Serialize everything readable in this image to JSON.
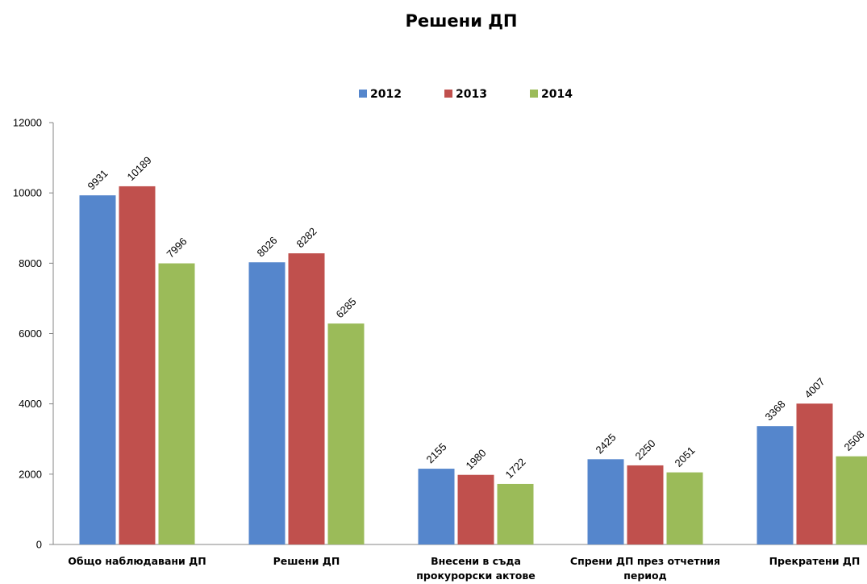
{
  "chart_data": {
    "type": "bar",
    "title": "Решени ДП",
    "categories": [
      [
        "Общо наблюдавани ДП"
      ],
      [
        "Решени ДП"
      ],
      [
        "Внесени в съда",
        "прокурорски актове"
      ],
      [
        "Спрени ДП през отчетния",
        "период"
      ],
      [
        "Прекратени ДП"
      ]
    ],
    "series": [
      {
        "name": "2012",
        "color": "#5586cc",
        "values": [
          9931,
          8026,
          2155,
          2425,
          3368
        ]
      },
      {
        "name": "2013",
        "color": "#c0504d",
        "values": [
          10189,
          8282,
          1980,
          2250,
          4007
        ]
      },
      {
        "name": "2014",
        "color": "#9bbb59",
        "values": [
          7996,
          6285,
          1722,
          2051,
          2508
        ]
      }
    ],
    "ylim": [
      0,
      12000
    ],
    "yticks": [
      0,
      2000,
      4000,
      6000,
      8000,
      10000,
      12000
    ],
    "legend_position": "top-center",
    "grid": false
  }
}
